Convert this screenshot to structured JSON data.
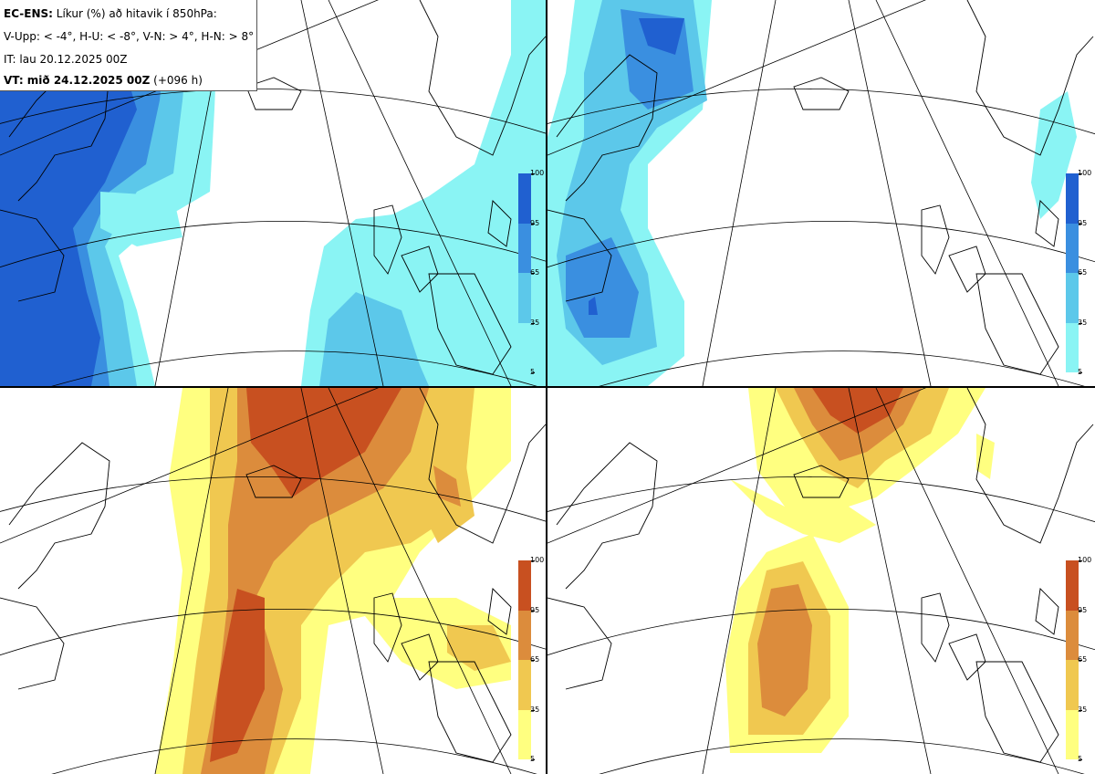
{
  "header": {
    "title_prefix": "EC-ENS:",
    "title_text": "Líkur (%) að hitavik í 850hPa:",
    "quadrants": "V-Upp: < -4°, H-U: < -8°, V-N: > 4°, H-N: > 8°",
    "init_time": "IT: lau 20.12.2025 00Z",
    "valid_prefix": "VT: mið 24.12.2025 00Z",
    "valid_suffix": "(+096 h)"
  },
  "colorbar": {
    "labels": [
      "100",
      "95",
      "65",
      "35",
      "5"
    ]
  },
  "colors": {
    "blue_levels": [
      "#8af4f4",
      "#5cc8ea",
      "#3a8fe0",
      "#2060d0"
    ],
    "orange_levels": [
      "#ffff80",
      "#f0c850",
      "#dc8c3c",
      "#c85020"
    ],
    "coastline": "#000000",
    "graticule": "#000000"
  },
  "panels": [
    {
      "id": "upper-left",
      "variable": "anomaly < -4°",
      "palette": "blue"
    },
    {
      "id": "upper-right",
      "variable": "anomaly < -8°",
      "palette": "blue"
    },
    {
      "id": "lower-left",
      "variable": "anomaly > 4°",
      "palette": "orange"
    },
    {
      "id": "lower-right",
      "variable": "anomaly > 8°",
      "palette": "orange"
    }
  ]
}
